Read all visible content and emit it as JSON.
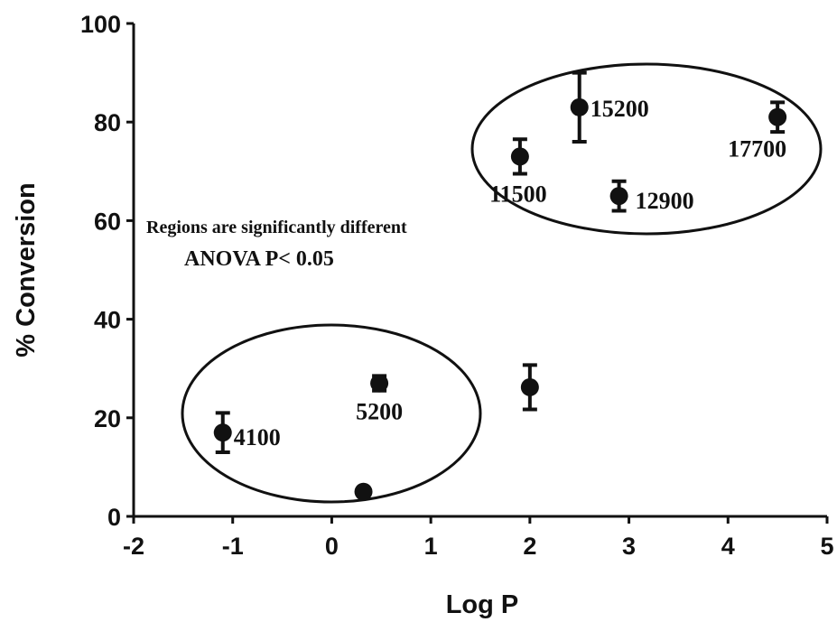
{
  "chart_data": {
    "type": "scatter",
    "title": "",
    "xlabel": "Log P",
    "ylabel": "% Conversion",
    "xlim": [
      -2,
      5
    ],
    "ylim": [
      0,
      100
    ],
    "xticks": [
      "-2",
      "-1",
      "0",
      "1",
      "2",
      "3",
      "4",
      "5"
    ],
    "yticks": [
      "0",
      "20",
      "40",
      "60",
      "80",
      "100"
    ],
    "grid": false,
    "points": [
      {
        "x": -1.1,
        "y": 17.0,
        "err": 4.0,
        "label": "4100"
      },
      {
        "x": 0.32,
        "y": 5.0,
        "err": 0,
        "label": ""
      },
      {
        "x": 0.48,
        "y": 27.0,
        "err": 1.5,
        "label": "5200"
      },
      {
        "x": 2.0,
        "y": 26.2,
        "err": 4.5,
        "label": ""
      },
      {
        "x": 1.9,
        "y": 73.0,
        "err": 3.5,
        "label": "11500"
      },
      {
        "x": 2.5,
        "y": 83.0,
        "err": 7.0,
        "label": "15200"
      },
      {
        "x": 2.9,
        "y": 65.0,
        "err": 3.0,
        "label": "12900"
      },
      {
        "x": 4.5,
        "y": 81.0,
        "err": 3.0,
        "label": "17700"
      }
    ],
    "annotations": [
      "Regions are significantly different",
      "ANOVA P< 0.05"
    ]
  }
}
